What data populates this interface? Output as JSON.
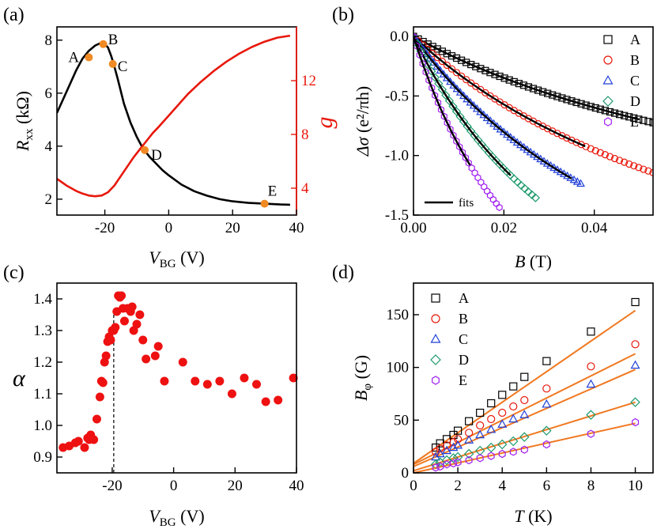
{
  "chart_data": [
    {
      "panel": "(a)",
      "type": "line",
      "xlabel_main": "V",
      "xlabel_sub": "BG",
      "xlabel_unit": " (V)",
      "ylabel_main": "R",
      "ylabel_sub": "xx",
      "ylabel_unit": " (kΩ)",
      "y2label": "g",
      "xlim": [
        -35,
        40
      ],
      "ylim": [
        1.4,
        8.5
      ],
      "y2lim": [
        2,
        16
      ],
      "xticks": [
        "-20",
        "0",
        "20",
        "40"
      ],
      "xtick_values": [
        -20,
        0,
        20,
        40
      ],
      "yticks": [
        "2",
        "4",
        "6",
        "8"
      ],
      "ytick_values": [
        2,
        4,
        6,
        8
      ],
      "y2ticks": [
        "4",
        "8",
        "12"
      ],
      "y2tick_values": [
        4,
        8,
        12
      ],
      "series": [
        {
          "name": "Rxx",
          "color": "#000000",
          "axis": "left",
          "x": [
            -35,
            -32,
            -29,
            -27,
            -25,
            -23,
            -21.5,
            -20,
            -19,
            -18,
            -17,
            -16,
            -14,
            -12,
            -10,
            -8,
            -6,
            -4,
            -2,
            0,
            4,
            8,
            12,
            16,
            20,
            25,
            30,
            35,
            38
          ],
          "y": [
            5.25,
            6.05,
            6.85,
            7.3,
            7.6,
            7.8,
            7.88,
            7.85,
            7.72,
            7.4,
            7.0,
            6.55,
            5.6,
            4.9,
            4.35,
            3.9,
            3.6,
            3.35,
            3.1,
            2.9,
            2.55,
            2.3,
            2.13,
            2.0,
            1.92,
            1.86,
            1.83,
            1.8,
            1.79
          ]
        },
        {
          "name": "g",
          "color": "#e8180c",
          "axis": "right",
          "x": [
            -35,
            -32,
            -29,
            -27,
            -25,
            -23,
            -21,
            -19,
            -17,
            -15,
            -13,
            -11,
            -9,
            -7,
            -5,
            -3,
            0,
            3,
            6,
            10,
            14,
            18,
            22,
            26,
            30,
            34,
            38
          ],
          "y": [
            4.7,
            4.2,
            3.8,
            3.6,
            3.45,
            3.4,
            3.45,
            3.7,
            4.2,
            4.9,
            5.6,
            6.3,
            6.9,
            7.5,
            8.1,
            8.6,
            9.4,
            10.2,
            11.0,
            11.9,
            12.7,
            13.4,
            14.0,
            14.5,
            14.9,
            15.2,
            15.35
          ]
        }
      ],
      "points": [
        {
          "label": "A",
          "x": -25,
          "y": 7.35
        },
        {
          "label": "B",
          "x": -20.5,
          "y": 7.85
        },
        {
          "label": "C",
          "x": -17.5,
          "y": 7.1
        },
        {
          "label": "D",
          "x": -7.5,
          "y": 3.85
        },
        {
          "label": "E",
          "x": 30,
          "y": 1.83
        }
      ]
    },
    {
      "panel": "(b)",
      "type": "scatter",
      "xlabel_main": "B",
      "xlabel_unit": " (T)",
      "ylabel_main": "Δσ",
      "ylabel_unit": " (e²/πh)",
      "xlim": [
        0,
        0.053
      ],
      "ylim": [
        -1.5,
        0.08
      ],
      "xticks": [
        "0.00",
        "0.02",
        "0.04"
      ],
      "xtick_values": [
        0,
        0.02,
        0.04
      ],
      "yticks": [
        "0.0",
        "-0.5",
        "-1.0",
        "-1.5"
      ],
      "ytick_values": [
        0,
        -0.5,
        -1.0,
        -1.5
      ],
      "legend_label": "fits",
      "series": [
        {
          "name": "A",
          "marker": "square",
          "color": "#000000",
          "B0": 0.055,
          "k": 1.15,
          "xmax": 0.053,
          "fit_xmax": 0.05
        },
        {
          "name": "B",
          "marker": "circle",
          "color": "#e8180c",
          "B0": 0.045,
          "k": 1.6,
          "xmax": 0.053,
          "fit_xmax": 0.038
        },
        {
          "name": "C",
          "marker": "triangle",
          "color": "#1f3fd8",
          "B0": 0.035,
          "k": 1.85,
          "xmax": 0.037,
          "fit_xmax": 0.035
        },
        {
          "name": "D",
          "marker": "diamond",
          "color": "#1d9a6c",
          "B0": 0.025,
          "k": 2.0,
          "xmax": 0.027,
          "fit_xmax": 0.0215
        },
        {
          "name": "E",
          "marker": "hexagon",
          "color": "#a020f0",
          "B0": 0.018,
          "k": 2.15,
          "xmax": 0.019,
          "fit_xmax": 0.0125
        }
      ]
    },
    {
      "panel": "(c)",
      "type": "scatter",
      "xlabel_main": "V",
      "xlabel_sub": "BG",
      "xlabel_unit": " (V)",
      "ylabel_main": "α",
      "xlim": [
        -38,
        40
      ],
      "ylim": [
        0.85,
        1.45
      ],
      "xticks": [
        "-20",
        "0",
        "20",
        "40"
      ],
      "xtick_values": [
        -20,
        0,
        20,
        40
      ],
      "yticks": [
        "0.9",
        "1.0",
        "1.1",
        "1.2",
        "1.3",
        "1.4"
      ],
      "ytick_values": [
        0.9,
        1.0,
        1.1,
        1.2,
        1.3,
        1.4
      ],
      "dashed_x": -19.5,
      "color": "#ee1111",
      "x": [
        -36,
        -34,
        -32,
        -31,
        -29,
        -28,
        -27,
        -27.5,
        -26,
        -25,
        -24,
        -23.5,
        -23,
        -22.5,
        -22,
        -21.5,
        -21,
        -20.5,
        -20,
        -19.5,
        -19,
        -18.5,
        -18,
        -17.5,
        -17,
        -16.5,
        -16,
        -15,
        -14,
        -13.5,
        -13,
        -12,
        -11,
        -10,
        -9,
        -6,
        -5,
        -3,
        3,
        7,
        11,
        15,
        19,
        23,
        27,
        30,
        34,
        39
      ],
      "y": [
        0.93,
        0.935,
        0.945,
        0.95,
        0.93,
        0.96,
        0.97,
        0.955,
        0.955,
        1.02,
        1.09,
        1.14,
        1.135,
        1.2,
        1.22,
        1.265,
        1.28,
        1.27,
        1.3,
        1.3,
        1.31,
        1.36,
        1.41,
        1.405,
        1.41,
        1.37,
        1.33,
        1.37,
        1.36,
        1.375,
        1.3,
        1.32,
        1.35,
        1.27,
        1.21,
        1.22,
        1.25,
        1.14,
        1.2,
        1.14,
        1.13,
        1.14,
        1.1,
        1.15,
        1.13,
        1.075,
        1.08,
        1.15
      ]
    },
    {
      "panel": "(d)",
      "type": "scatter",
      "xlabel_main": "T",
      "xlabel_unit": " (K)",
      "ylabel_main": "B",
      "ylabel_sub": "φ",
      "ylabel_unit": " (G)",
      "xlim": [
        0,
        10.8
      ],
      "ylim": [
        0,
        180
      ],
      "xticks": [
        "0",
        "2",
        "4",
        "6",
        "8",
        "10"
      ],
      "xtick_values": [
        0,
        2,
        4,
        6,
        8,
        10
      ],
      "yticks": [
        "0",
        "50",
        "100",
        "150"
      ],
      "ytick_values": [
        0,
        50,
        100,
        150
      ],
      "fit_color": "#f07820",
      "x": [
        1.0,
        1.2,
        1.5,
        1.8,
        2.0,
        2.5,
        3.0,
        3.5,
        4.0,
        4.5,
        5.0,
        6.0,
        8.0,
        10.0
      ],
      "series": [
        {
          "name": "A",
          "marker": "square",
          "color": "#000000",
          "y": [
            24,
            28,
            32,
            36,
            40,
            49,
            57,
            66,
            74,
            82,
            91,
            106,
            134,
            162
          ],
          "fit": [
            9,
            154
          ]
        },
        {
          "name": "B",
          "marker": "circle",
          "color": "#e8180c",
          "y": [
            20,
            23,
            26,
            29,
            32,
            38,
            45,
            51,
            57,
            63,
            69,
            80,
            101,
            122
          ],
          "fit": [
            8,
            113
          ]
        },
        {
          "name": "C",
          "marker": "triangle",
          "color": "#1f3fd8",
          "y": [
            15,
            18,
            21,
            24,
            26,
            31,
            36,
            41,
            46,
            51,
            55,
            65,
            84,
            102
          ],
          "fit": [
            6,
            98
          ]
        },
        {
          "name": "D",
          "marker": "diamond",
          "color": "#1d9a6c",
          "y": [
            8,
            10,
            12,
            14,
            15,
            18,
            21,
            24,
            27,
            30,
            34,
            40,
            55,
            67
          ],
          "fit": [
            2,
            67
          ]
        },
        {
          "name": "E",
          "marker": "hexagon",
          "color": "#a020f0",
          "y": [
            5,
            6,
            8,
            9,
            10,
            12,
            14,
            16,
            18,
            20,
            22,
            27,
            37,
            48
          ],
          "fit": [
            0,
            47
          ]
        }
      ]
    }
  ]
}
